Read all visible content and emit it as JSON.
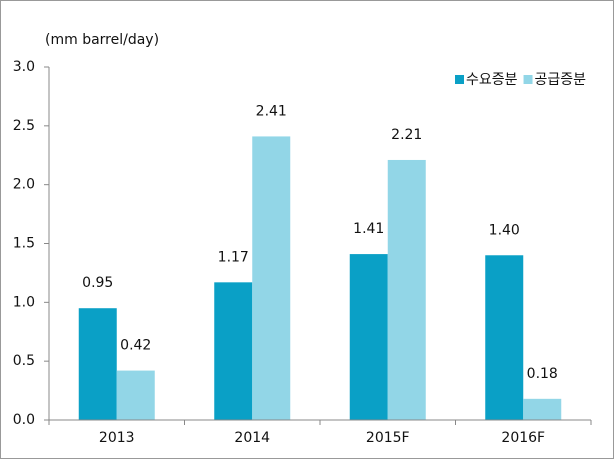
{
  "chart_data": {
    "type": "bar",
    "y_label": "(mm barrel/day)",
    "categories": [
      "2013",
      "2014",
      "2015F",
      "2016F"
    ],
    "series": [
      {
        "name": "수요증분",
        "color": "#0aa0c6",
        "values": [
          0.95,
          1.17,
          1.41,
          1.4
        ],
        "value_labels": [
          "0.95",
          "1.17",
          "1.41",
          "1.40"
        ]
      },
      {
        "name": "공급증분",
        "color": "#92d6e7",
        "values": [
          0.42,
          2.41,
          2.21,
          0.18
        ],
        "value_labels": [
          "0.42",
          "2.41",
          "2.21",
          "0.18"
        ]
      }
    ],
    "ylim": [
      0,
      3
    ],
    "yticks": [
      {
        "value": 0,
        "label": "0.0"
      },
      {
        "value": 0.5,
        "label": "0.5"
      },
      {
        "value": 1,
        "label": "1.0"
      },
      {
        "value": 1.5,
        "label": "1.5"
      },
      {
        "value": 2,
        "label": "2.0"
      },
      {
        "value": 2.5,
        "label": "2.5"
      },
      {
        "value": 3,
        "label": "3.0"
      }
    ],
    "legend": "top-right"
  }
}
